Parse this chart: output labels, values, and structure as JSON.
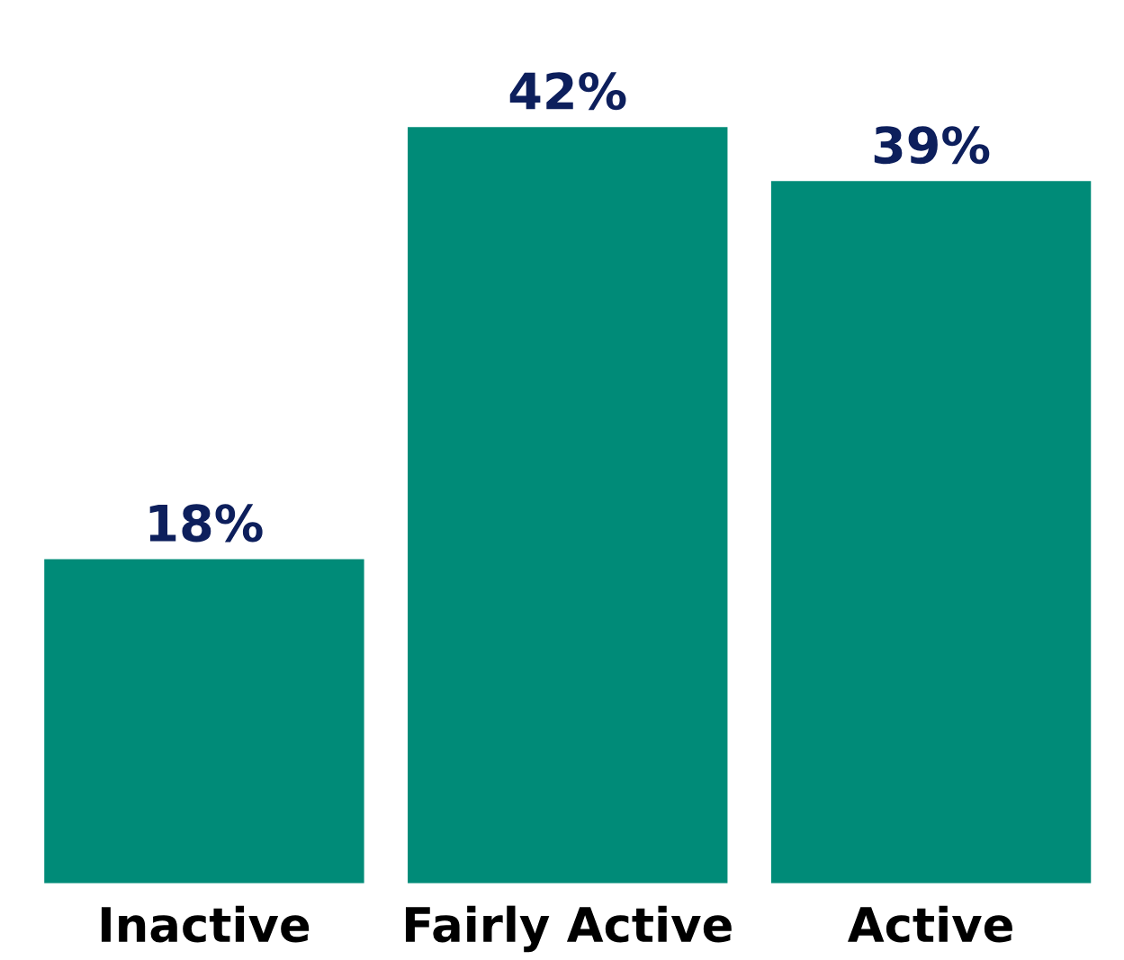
{
  "chart_data": {
    "type": "bar",
    "categories": [
      "Inactive",
      "Fairly Active",
      "Active"
    ],
    "values": [
      18,
      42,
      39
    ],
    "value_labels": [
      "18%",
      "42%",
      "39%"
    ],
    "color": "#008b78",
    "grid": false,
    "tick_labels": "x"
  }
}
